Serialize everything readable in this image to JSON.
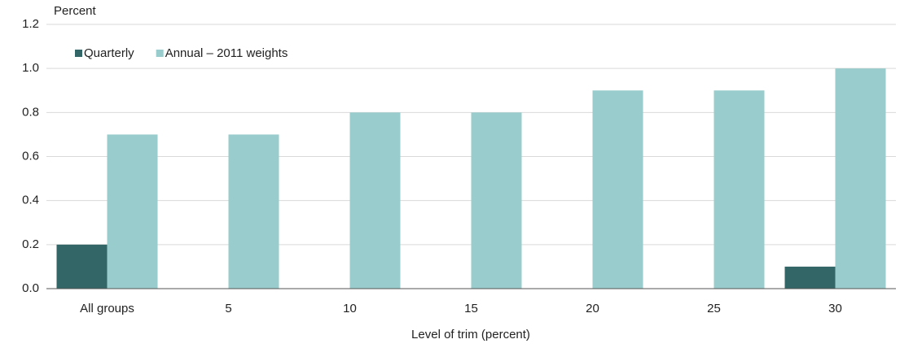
{
  "chart_data": {
    "type": "bar",
    "y_label": "Percent",
    "x_label": "Level of trim (percent)",
    "categories": [
      "All groups",
      "5",
      "10",
      "15",
      "20",
      "25",
      "30"
    ],
    "series": [
      {
        "name": "Quarterly",
        "color": "#336666",
        "values": [
          0.2,
          0,
          0,
          0,
          0,
          0,
          0.1
        ]
      },
      {
        "name": "Annual – 2011 weights",
        "color": "#99cccc",
        "values": [
          0.7,
          0.7,
          0.8,
          0.8,
          0.9,
          0.9,
          1.0
        ]
      }
    ],
    "ylim": [
      0,
      1.2
    ],
    "yticks": [
      {
        "value": 0,
        "label": "0.0"
      },
      0.2,
      0.4,
      0.6,
      0.8,
      {
        "value": 1,
        "label": "1.0"
      },
      1.2
    ],
    "grid": true,
    "legend": "top-left"
  }
}
